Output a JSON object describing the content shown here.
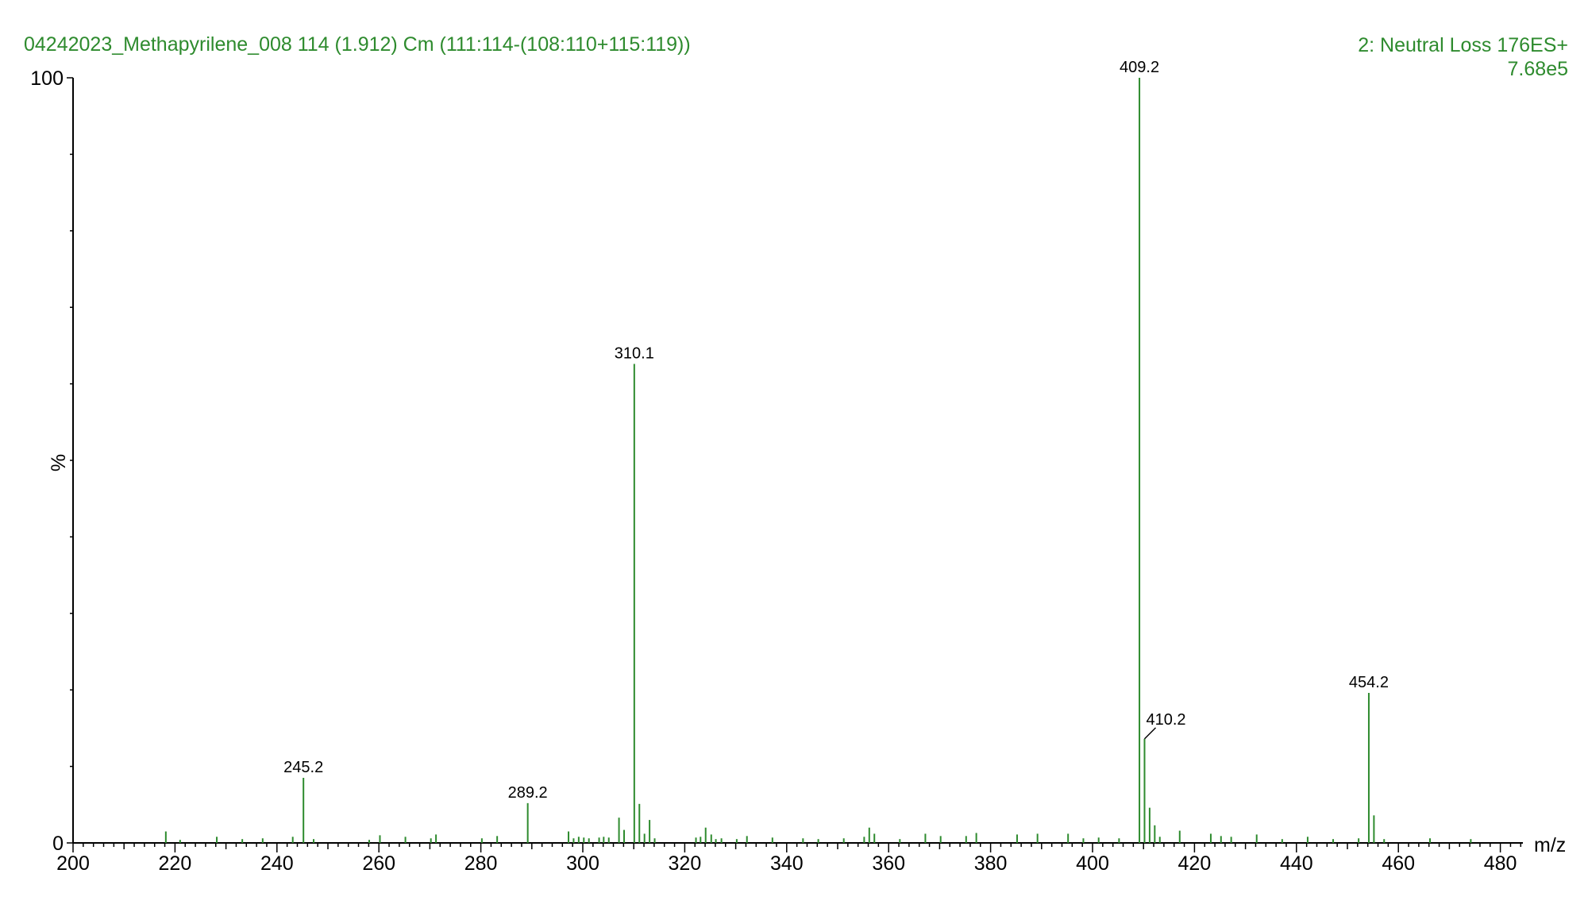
{
  "header": {
    "left": "04242023_Methapyrilene_008 114 (1.912) Cm (111:114-(108:110+115:119))",
    "right_line1": "2: Neutral Loss 176ES+",
    "right_line2": "7.68e5"
  },
  "colors": {
    "header": "#2e8b2e",
    "peaks": "#2e8b2e",
    "axis": "#000000"
  },
  "chart_data": {
    "type": "bar",
    "xlabel": "m/z",
    "ylabel": "%",
    "xlim": [
      200,
      484
    ],
    "ylim": [
      0,
      100
    ],
    "x_ticks": [
      200,
      220,
      240,
      260,
      280,
      300,
      320,
      340,
      360,
      380,
      400,
      420,
      440,
      460,
      480
    ],
    "y_ticks": [
      0,
      100
    ],
    "labeled_peaks": [
      {
        "mz": 245.2,
        "intensity": 8.5,
        "label": "245.2"
      },
      {
        "mz": 289.2,
        "intensity": 5.2,
        "label": "289.2"
      },
      {
        "mz": 310.1,
        "intensity": 62.6,
        "label": "310.1"
      },
      {
        "mz": 409.2,
        "intensity": 100,
        "label": "409.2"
      },
      {
        "mz": 410.2,
        "intensity": 13.6,
        "label": "410.2"
      },
      {
        "mz": 454.2,
        "intensity": 19.6,
        "label": "454.2"
      }
    ],
    "minor_peaks": [
      [
        218.2,
        1.5
      ],
      [
        221.0,
        0.4
      ],
      [
        228.2,
        0.8
      ],
      [
        233.2,
        0.5
      ],
      [
        237.2,
        0.6
      ],
      [
        243.1,
        0.8
      ],
      [
        247.2,
        0.5
      ],
      [
        258.1,
        0.4
      ],
      [
        260.2,
        1.0
      ],
      [
        265.2,
        0.8
      ],
      [
        270.2,
        0.6
      ],
      [
        271.2,
        1.1
      ],
      [
        280.2,
        0.6
      ],
      [
        283.2,
        0.9
      ],
      [
        297.2,
        1.5
      ],
      [
        298.2,
        0.6
      ],
      [
        299.2,
        0.8
      ],
      [
        300.2,
        0.7
      ],
      [
        301.2,
        0.6
      ],
      [
        303.2,
        0.7
      ],
      [
        304.1,
        0.8
      ],
      [
        305.1,
        0.7
      ],
      [
        307.1,
        3.3
      ],
      [
        308.1,
        1.7
      ],
      [
        311.1,
        5.1
      ],
      [
        312.1,
        1.2
      ],
      [
        313.1,
        3.0
      ],
      [
        314.1,
        0.6
      ],
      [
        322.2,
        0.7
      ],
      [
        323.1,
        0.8
      ],
      [
        324.1,
        2.0
      ],
      [
        325.2,
        1.1
      ],
      [
        326.1,
        0.5
      ],
      [
        327.2,
        0.6
      ],
      [
        330.2,
        0.5
      ],
      [
        332.2,
        0.9
      ],
      [
        337.2,
        0.7
      ],
      [
        343.2,
        0.6
      ],
      [
        346.2,
        0.5
      ],
      [
        351.2,
        0.6
      ],
      [
        355.2,
        0.8
      ],
      [
        356.2,
        2.0
      ],
      [
        357.2,
        1.2
      ],
      [
        362.2,
        0.5
      ],
      [
        367.2,
        1.2
      ],
      [
        370.2,
        0.9
      ],
      [
        375.2,
        0.9
      ],
      [
        377.2,
        1.3
      ],
      [
        385.2,
        1.1
      ],
      [
        389.2,
        1.2
      ],
      [
        395.2,
        1.2
      ],
      [
        398.2,
        0.6
      ],
      [
        401.2,
        0.7
      ],
      [
        405.2,
        0.6
      ],
      [
        411.2,
        4.6
      ],
      [
        412.2,
        2.3
      ],
      [
        413.2,
        0.8
      ],
      [
        417.1,
        1.6
      ],
      [
        423.2,
        1.2
      ],
      [
        425.2,
        0.9
      ],
      [
        427.2,
        0.8
      ],
      [
        432.2,
        1.1
      ],
      [
        437.2,
        0.5
      ],
      [
        442.2,
        0.8
      ],
      [
        447.2,
        0.5
      ],
      [
        452.2,
        0.6
      ],
      [
        455.2,
        3.6
      ],
      [
        457.2,
        0.5
      ],
      [
        466.2,
        0.6
      ],
      [
        474.2,
        0.5
      ]
    ]
  }
}
